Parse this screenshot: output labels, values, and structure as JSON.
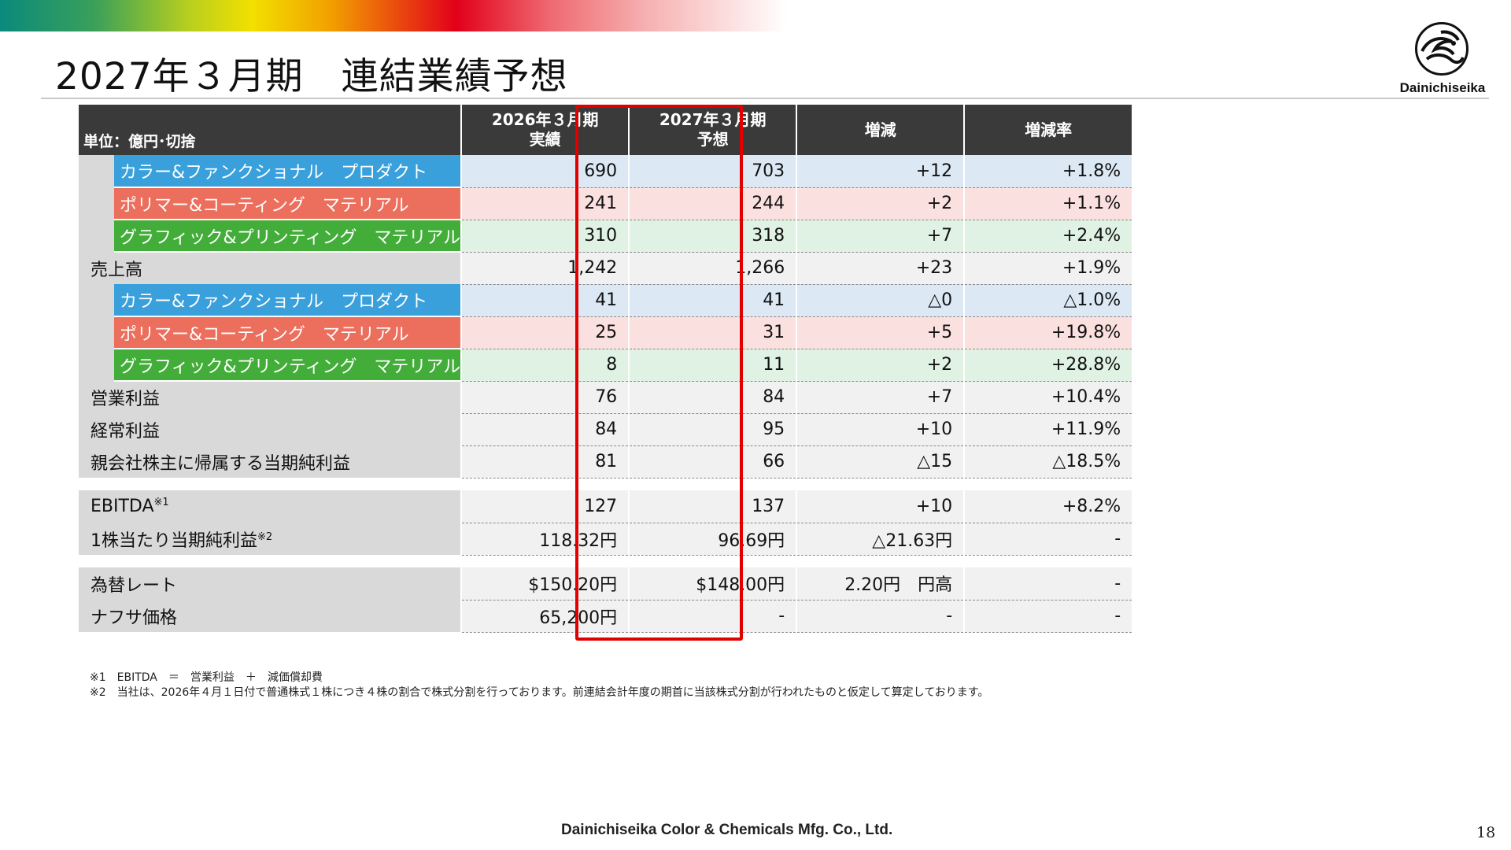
{
  "header": {
    "title": "2027年３月期　連結業績予想",
    "logo_text": "Dainichiseika"
  },
  "colors": {
    "color_functional": "#39a0dc",
    "polymer_coating": "#ec6e5c",
    "graphic_printing": "#43ad3a",
    "highlight_border": "#e00000",
    "header_bg": "#3a3a3a"
  },
  "table": {
    "unit_label": "単位：億円･切捨",
    "col_2026": [
      "2026年３月期",
      "実績"
    ],
    "col_2027": [
      "2027年３月期",
      "予想"
    ],
    "col_change": "増減",
    "col_rate": "増減率",
    "segment_names": {
      "color": "カラー&ファンクショナル　プロダクト",
      "polymer": "ポリマー&コーティング　マテリアル",
      "graphic": "グラフィック&プリンティング　マテリアル"
    },
    "sales_segments": [
      {
        "v2026": "690",
        "v2027": "703",
        "change": "+12",
        "rate": "+1.8%"
      },
      {
        "v2026": "241",
        "v2027": "244",
        "change": "+2",
        "rate": "+1.1%"
      },
      {
        "v2026": "310",
        "v2027": "318",
        "change": "+7",
        "rate": "+2.4%"
      }
    ],
    "sales_total": {
      "label": "売上高",
      "v2026": "1,242",
      "v2027": "1,266",
      "change": "+23",
      "rate": "+1.9%"
    },
    "op_segments": [
      {
        "v2026": "41",
        "v2027": "41",
        "change": "△0",
        "rate": "△1.0%"
      },
      {
        "v2026": "25",
        "v2027": "31",
        "change": "+5",
        "rate": "+19.8%"
      },
      {
        "v2026": "8",
        "v2027": "11",
        "change": "+2",
        "rate": "+28.8%"
      }
    ],
    "operating_profit": {
      "label": "営業利益",
      "v2026": "76",
      "v2027": "84",
      "change": "+7",
      "rate": "+10.4%"
    },
    "ordinary_profit": {
      "label": "経常利益",
      "v2026": "84",
      "v2027": "95",
      "change": "+10",
      "rate": "+11.9%"
    },
    "net_income": {
      "label": "親会社株主に帰属する当期純利益",
      "v2026": "81",
      "v2027": "66",
      "change": "△15",
      "rate": "△18.5%"
    },
    "ebitda": {
      "label": "EBITDA",
      "note": "※1",
      "v2026": "127",
      "v2027": "137",
      "change": "+10",
      "rate": "+8.2%"
    },
    "eps": {
      "label": "1株当たり当期純利益",
      "note": "※2",
      "v2026": "118.32円",
      "v2027": "96.69円",
      "change": "△21.63円",
      "rate": "-"
    },
    "fx_rate": {
      "label": "為替レート",
      "v2026": "$150.20円",
      "v2027": "$148.00円",
      "change": "2.20円　円高",
      "rate": "-"
    },
    "naphtha": {
      "label": "ナフサ価格",
      "v2026": "65,200円",
      "v2027": "-",
      "change": "-",
      "rate": "-"
    }
  },
  "notes": [
    "※1　EBITDA　＝　営業利益　＋　減価償却費",
    "※2　当社は、2026年４月１日付で普通株式１株につき４株の割合で株式分割を行っております。前連結会計年度の期首に当該株式分割が行われたものと仮定して算定しております。"
  ],
  "footer": {
    "company": "Dainichiseika Color & Chemicals Mfg. Co., Ltd.",
    "page_number": "18"
  }
}
